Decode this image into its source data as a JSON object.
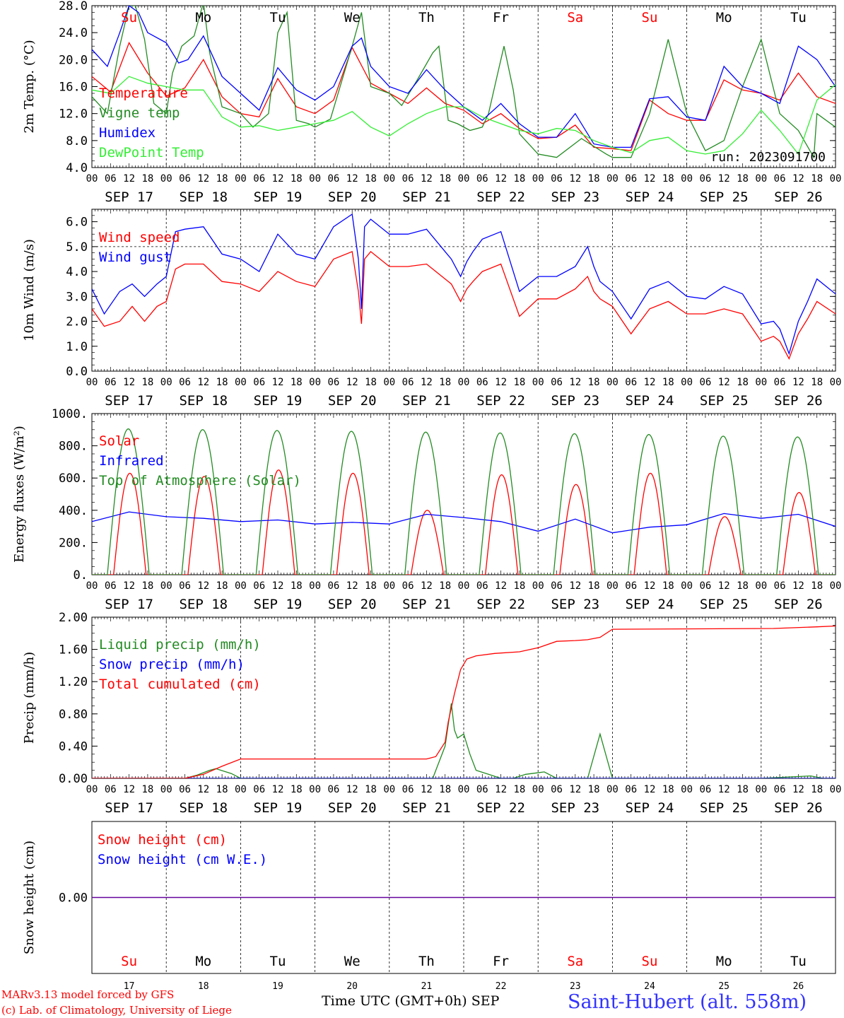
{
  "colors": {
    "red": "#ff0000",
    "green": "#228b22",
    "blue": "#0000ff",
    "lightgreen": "#33ee33",
    "black": "#000000",
    "purple": "#8000c0",
    "station": "#3333ff"
  },
  "dates": [
    "SEP 17",
    "SEP 18",
    "SEP 19",
    "SEP 20",
    "SEP 21",
    "SEP 22",
    "SEP 23",
    "SEP 24",
    "SEP 25",
    "SEP 26"
  ],
  "hour_labels": [
    "00",
    "06",
    "12",
    "18"
  ],
  "hour_label_end": "00",
  "weekdays": [
    {
      "label": "Su",
      "color": "#ff0000"
    },
    {
      "label": "Mo",
      "color": "#000000"
    },
    {
      "label": "Tu",
      "color": "#000000"
    },
    {
      "label": "We",
      "color": "#000000"
    },
    {
      "label": "Th",
      "color": "#000000"
    },
    {
      "label": "Fr",
      "color": "#000000"
    },
    {
      "label": "Sa",
      "color": "#ff0000"
    },
    {
      "label": "Su",
      "color": "#ff0000"
    },
    {
      "label": "Mo",
      "color": "#000000"
    },
    {
      "label": "Tu",
      "color": "#000000"
    }
  ],
  "day_numbers": [
    "17",
    "18",
    "19",
    "20",
    "21",
    "22",
    "23",
    "24",
    "25",
    "26"
  ],
  "footer": {
    "credit1": "MARv3.13 model forced by GFS",
    "credit2": "(c) Lab. of Climatology, University of Liege",
    "xtitle": "Time UTC (GMT+0h) SEP",
    "station": "Saint-Hubert (alt. 558m)"
  },
  "chart_data": [
    {
      "type": "line",
      "ylabel": "2m Temp. (°C)",
      "ylim": [
        4,
        28
      ],
      "ytick_labels": [
        "4.0",
        "8.0",
        "12.0",
        "16.0",
        "20.0",
        "24.0",
        "28.0"
      ],
      "annotation": "run: 2023091700",
      "x_unit": "hours since SEP 17 00 UTC",
      "series": [
        {
          "name": "Temperature",
          "color": "#ff0000",
          "x": [
            0,
            6,
            12,
            18,
            24,
            30,
            36,
            42,
            48,
            54,
            60,
            66,
            72,
            78,
            84,
            90,
            96,
            102,
            108,
            114,
            120,
            126,
            132,
            138,
            144,
            150,
            156,
            162,
            168,
            174,
            180,
            186,
            192,
            198,
            204,
            210,
            216,
            222,
            228,
            234,
            240
          ],
          "values": [
            17.5,
            15.2,
            22.5,
            18,
            14.6,
            15.8,
            20,
            14.5,
            12,
            11.5,
            17.2,
            13,
            12,
            14,
            21.8,
            16.5,
            15,
            13.5,
            15.8,
            13.5,
            12.5,
            10.5,
            12,
            9.8,
            8.3,
            8.5,
            10.3,
            7,
            6.8,
            6.5,
            14,
            12,
            11,
            11,
            17,
            15.5,
            15,
            14,
            18,
            14.5,
            13.5
          ]
        },
        {
          "name": "Vigne temp",
          "color": "#228b22",
          "x": [
            0,
            5,
            9,
            12,
            14,
            17,
            20,
            24,
            26,
            29,
            33,
            36,
            38,
            42,
            48,
            52,
            57,
            60,
            63,
            66,
            70,
            72,
            77,
            84,
            87,
            90,
            96,
            100,
            105,
            110,
            112,
            115,
            118,
            122,
            126,
            128,
            131,
            133,
            136,
            138,
            144,
            150,
            158,
            166,
            168,
            174,
            180,
            186,
            192,
            198,
            204,
            210,
            216,
            222,
            228,
            233,
            234,
            240
          ],
          "values": [
            14.5,
            12,
            22,
            28,
            28,
            23,
            13.5,
            12,
            18,
            22,
            23.5,
            28.5,
            21,
            13,
            12,
            10,
            12,
            24,
            27,
            11,
            10.5,
            10,
            11.2,
            22,
            27,
            16,
            15,
            13.2,
            17,
            21,
            22,
            11,
            10.5,
            9.5,
            10,
            12,
            18,
            22,
            15.5,
            9,
            6,
            5.5,
            8.3,
            6,
            5.5,
            5.5,
            12,
            23,
            12,
            6.5,
            8,
            16,
            23,
            12,
            9.5,
            5.5,
            12,
            10
          ]
        },
        {
          "name": "Humidex",
          "color": "#0000ff",
          "x": [
            0,
            5,
            9,
            12,
            15,
            18,
            24,
            28,
            31,
            36,
            42,
            48,
            54,
            60,
            66,
            72,
            78,
            84,
            87,
            90,
            96,
            102,
            108,
            114,
            120,
            126,
            132,
            138,
            144,
            150,
            156,
            162,
            168,
            174,
            180,
            186,
            192,
            198,
            204,
            210,
            216,
            222,
            228,
            234,
            240
          ],
          "values": [
            21.5,
            19,
            24,
            28,
            27,
            24,
            22.5,
            19.5,
            20,
            23.5,
            17.5,
            15,
            12.5,
            18.8,
            15.5,
            14,
            16,
            22,
            23.2,
            19,
            16,
            15,
            18.5,
            15.5,
            13,
            11,
            13.5,
            10.5,
            8.5,
            8.5,
            12,
            7.5,
            7,
            7,
            14.2,
            14.5,
            11.5,
            11,
            19,
            16,
            15,
            13.5,
            22,
            20,
            16
          ]
        },
        {
          "name": "DewPoint Temp",
          "color": "#33ee33",
          "x": [
            0,
            6,
            12,
            18,
            24,
            30,
            36,
            42,
            48,
            54,
            60,
            66,
            72,
            78,
            84,
            90,
            96,
            102,
            108,
            114,
            120,
            126,
            132,
            138,
            144,
            150,
            156,
            162,
            168,
            174,
            180,
            186,
            192,
            198,
            204,
            210,
            216,
            222,
            228,
            234,
            240
          ],
          "values": [
            15.5,
            15,
            17.5,
            16.5,
            16,
            15.5,
            15.5,
            11.5,
            10,
            10.2,
            9.5,
            10,
            10.5,
            11,
            12.3,
            10,
            8.7,
            10.5,
            12,
            13,
            13,
            11.5,
            10.5,
            9.5,
            9,
            9.8,
            9.5,
            8,
            7,
            6.2,
            8,
            8.5,
            6.5,
            6,
            6.5,
            9,
            12.5,
            9.5,
            6,
            14,
            16.3
          ]
        }
      ]
    },
    {
      "type": "line",
      "ylabel": "10m Wind (m/s)",
      "ylim": [
        0,
        6.5
      ],
      "ytick_labels": [
        "0.0",
        "1.0",
        "2.0",
        "3.0",
        "4.0",
        "5.0",
        "6.0"
      ],
      "reference_line": 5,
      "x_unit": "hours since SEP 17 00 UTC",
      "series": [
        {
          "name": "Wind speed",
          "color": "#ff0000",
          "x": [
            0,
            4,
            9,
            13,
            17,
            21,
            24,
            27,
            30,
            36,
            42,
            48,
            54,
            60,
            66,
            72,
            78,
            84,
            86,
            87,
            88,
            90,
            96,
            102,
            108,
            114,
            116,
            119,
            121,
            123,
            126,
            132,
            138,
            144,
            150,
            156,
            160,
            162,
            164,
            168,
            174,
            180,
            186,
            192,
            198,
            204,
            210,
            216,
            220,
            222,
            225,
            228,
            231,
            234,
            240
          ],
          "values": [
            2.5,
            1.8,
            2,
            2.6,
            2,
            2.6,
            2.8,
            4.1,
            4.3,
            4.3,
            3.6,
            3.5,
            3.2,
            4,
            3.6,
            3.4,
            4.5,
            4.8,
            3.2,
            1.9,
            4.5,
            4.8,
            4.2,
            4.2,
            4.3,
            3.7,
            3.5,
            2.8,
            3.3,
            3.6,
            4,
            4.3,
            2.2,
            2.9,
            2.9,
            3.3,
            3.8,
            3.2,
            2.9,
            2.6,
            1.5,
            2.5,
            2.8,
            2.3,
            2.3,
            2.5,
            2.3,
            1.2,
            1.4,
            1.2,
            0.5,
            1.5,
            2.1,
            2.8,
            2.3
          ]
        },
        {
          "name": "Wind gust",
          "color": "#0000ff",
          "x": [
            0,
            4,
            9,
            13,
            17,
            21,
            24,
            27,
            30,
            36,
            42,
            48,
            54,
            60,
            66,
            72,
            78,
            84,
            86,
            87,
            88,
            90,
            96,
            102,
            108,
            114,
            116,
            119,
            121,
            123,
            126,
            132,
            138,
            144,
            150,
            156,
            160,
            162,
            164,
            168,
            174,
            180,
            186,
            192,
            198,
            204,
            210,
            216,
            220,
            222,
            225,
            228,
            231,
            234,
            240
          ],
          "values": [
            3.3,
            2.3,
            3.2,
            3.5,
            3,
            3.5,
            3.8,
            5.6,
            5.7,
            5.8,
            4.7,
            4.5,
            4,
            5.5,
            4.7,
            4.5,
            5.8,
            6.3,
            4.5,
            2.5,
            5.8,
            6.1,
            5.5,
            5.5,
            5.7,
            4.8,
            4.5,
            3.8,
            4.4,
            4.8,
            5.3,
            5.6,
            3.2,
            3.8,
            3.8,
            4.2,
            5,
            4.2,
            3.6,
            3.2,
            2.1,
            3.3,
            3.6,
            3,
            2.9,
            3.4,
            3.1,
            1.9,
            2,
            1.7,
            0.7,
            2,
            2.8,
            3.7,
            3.1
          ]
        }
      ]
    },
    {
      "type": "line",
      "ylabel": "Energy fluxes (W/m²)",
      "ylim": [
        0,
        1000
      ],
      "ytick_labels": [
        "0.",
        "200.",
        "400.",
        "600.",
        "800.",
        "1000."
      ],
      "x_unit": "hours since SEP 17 00 UTC",
      "series": [
        {
          "name": "Solar",
          "color": "#ff0000",
          "daily_peaks_w_m2": [
            630,
            610,
            650,
            630,
            400,
            620,
            560,
            630,
            360,
            510
          ]
        },
        {
          "name": "Infrared",
          "color": "#0000ff",
          "x": [
            0,
            12,
            24,
            36,
            48,
            60,
            72,
            84,
            96,
            108,
            120,
            132,
            144,
            156,
            168,
            180,
            192,
            204,
            216,
            228,
            240
          ],
          "values": [
            330,
            390,
            360,
            350,
            330,
            340,
            315,
            325,
            315,
            375,
            355,
            330,
            270,
            345,
            260,
            295,
            310,
            380,
            350,
            375,
            300
          ]
        },
        {
          "name": "Top of Atmosphere (Solar)",
          "color": "#228b22",
          "daily_peaks_w_m2": [
            905,
            900,
            895,
            890,
            885,
            880,
            875,
            870,
            860,
            855
          ]
        }
      ]
    },
    {
      "type": "line",
      "ylabel": "Precip (mm/h)",
      "ylim": [
        0,
        2
      ],
      "ytick_labels": [
        "0.00",
        "0.40",
        "0.80",
        "1.20",
        "1.60",
        "2.00"
      ],
      "x_unit": "hours since SEP 17 00 UTC",
      "series": [
        {
          "name": "Liquid precip (mm/h)",
          "color": "#228b22",
          "x": [
            0,
            30,
            34,
            38,
            40,
            45,
            48,
            110,
            114,
            116,
            117,
            118,
            120,
            122,
            124,
            128,
            132,
            136,
            140,
            146,
            150,
            160,
            164,
            168,
            178,
            180,
            182,
            188,
            200,
            216,
            232,
            236,
            240
          ],
          "values": [
            0,
            0,
            0.04,
            0.1,
            0.12,
            0.06,
            0,
            0,
            0.4,
            0.93,
            0.6,
            0.5,
            0.55,
            0.3,
            0.1,
            0.05,
            0,
            0,
            0.05,
            0.08,
            0,
            0,
            0.55,
            0,
            0,
            0,
            0,
            0,
            0,
            0,
            0.03,
            0,
            0
          ]
        },
        {
          "name": "Snow precip (mm/h)",
          "color": "#0000ff",
          "x": [
            0,
            240
          ],
          "values": [
            0,
            0
          ]
        },
        {
          "name": "Total cumulated (cm)",
          "color": "#ff0000",
          "x": [
            0,
            30,
            36,
            42,
            48,
            60,
            96,
            108,
            111,
            114,
            115,
            117,
            119,
            121,
            124,
            130,
            138,
            144,
            150,
            156,
            160,
            164,
            168,
            220,
            234,
            240
          ],
          "values": [
            0,
            0,
            0.05,
            0.15,
            0.24,
            0.24,
            0.24,
            0.24,
            0.27,
            0.45,
            0.7,
            1.05,
            1.35,
            1.48,
            1.52,
            1.55,
            1.57,
            1.62,
            1.7,
            1.71,
            1.72,
            1.75,
            1.85,
            1.86,
            1.88,
            1.89
          ]
        }
      ]
    },
    {
      "type": "line",
      "ylabel": "Snow height (cm)",
      "ylim": [
        -1,
        1
      ],
      "ytick_labels": [
        "0.00"
      ],
      "x_unit": "hours since SEP 17 00 UTC",
      "series": [
        {
          "name": "Snow height (cm)",
          "color": "#ff0000",
          "x": [
            0,
            240
          ],
          "values": [
            0,
            0
          ]
        },
        {
          "name": "Snow height (cm W.E.)",
          "color": "#0000ff",
          "x": [
            0,
            240
          ],
          "values": [
            0,
            0
          ]
        }
      ]
    }
  ]
}
